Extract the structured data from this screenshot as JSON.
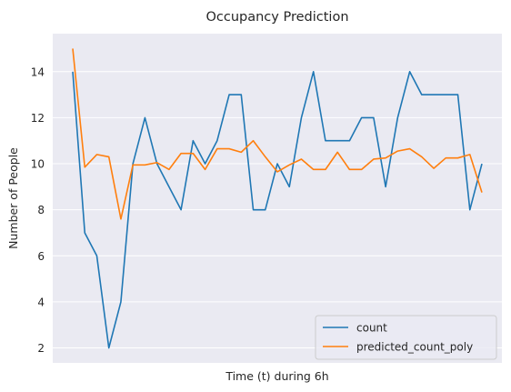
{
  "chart_data": {
    "type": "line",
    "title": "Occupancy Prediction",
    "xlabel": "Time (t) during 6h",
    "ylabel": "Number of People",
    "ylim": [
      1.35,
      15.65
    ],
    "yticks": [
      2,
      4,
      6,
      8,
      10,
      12,
      14
    ],
    "x_tick_labels_shown": false,
    "grid": true,
    "legend_position": "lower right",
    "x": [
      0,
      1,
      2,
      3,
      4,
      5,
      6,
      7,
      8,
      9,
      10,
      11,
      12,
      13,
      14,
      15,
      16,
      17,
      18,
      19,
      20,
      21,
      22,
      23,
      24,
      25,
      26,
      27,
      28,
      29,
      30,
      31,
      32,
      33,
      34
    ],
    "series": [
      {
        "name": "count",
        "color": "#1f77b4",
        "values": [
          14,
          7,
          6,
          2,
          4,
          10,
          12,
          10,
          9,
          8,
          11,
          10,
          11,
          13,
          13,
          8,
          8,
          10,
          9,
          12,
          14,
          11,
          11,
          11,
          12,
          12,
          9,
          12,
          14,
          13,
          13,
          13,
          13,
          8,
          10
        ]
      },
      {
        "name": "predicted_count_poly",
        "color": "#ff7f0e",
        "values": [
          15.0,
          9.85,
          10.4,
          10.3,
          7.6,
          9.95,
          9.95,
          10.05,
          9.75,
          10.45,
          10.45,
          9.75,
          10.65,
          10.65,
          10.5,
          11.0,
          10.3,
          9.65,
          9.95,
          10.2,
          9.75,
          9.75,
          10.5,
          9.75,
          9.75,
          10.2,
          10.25,
          10.55,
          10.65,
          10.3,
          9.8,
          10.25,
          10.25,
          10.4,
          8.75
        ]
      }
    ]
  }
}
